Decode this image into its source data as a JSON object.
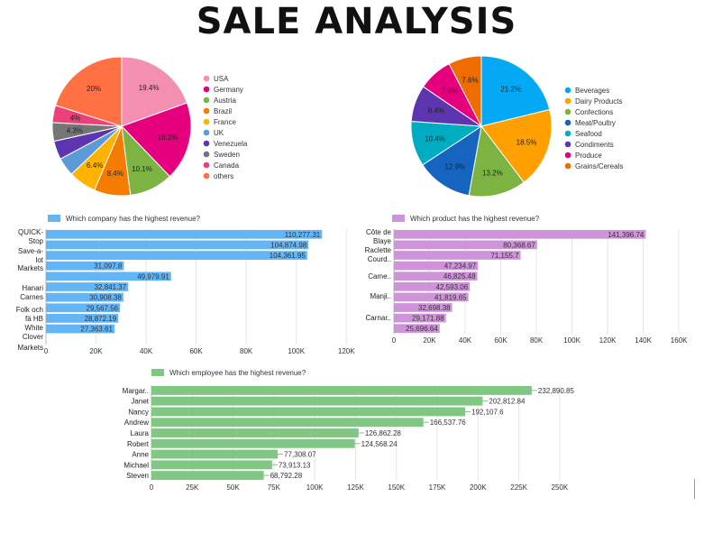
{
  "page": {
    "title": "SALE ANALYSIS"
  },
  "chart_data": [
    {
      "type": "pie",
      "title": "",
      "categories": [
        "USA",
        "Germany",
        "Austria",
        "Brazil",
        "France",
        "UK",
        "Venezuela",
        "Sweden",
        "Canada",
        "others"
      ],
      "values": [
        19.4,
        18.2,
        10.1,
        8.4,
        6.4,
        4.3,
        4.3,
        4.3,
        4,
        20
      ],
      "slice_labels": [
        "19.4%",
        "18.2%",
        "10.1%",
        "8.4%",
        "6.4%",
        "",
        "",
        "4.3%",
        "4%",
        "20%"
      ],
      "colors": [
        "#f48fb1",
        "#e6007e",
        "#7cb342",
        "#f57c00",
        "#ffb300",
        "#5c9bd5",
        "#5e35b1",
        "#757575",
        "#ec407a",
        "#ff7043"
      ],
      "legend_position": "right"
    },
    {
      "type": "pie",
      "title": "",
      "categories": [
        "Beverages",
        "Dairy Products",
        "Confections",
        "Meat/Poultry",
        "Seafood",
        "Condiments",
        "Produce",
        "Grains/Cereals"
      ],
      "values": [
        21.2,
        18.5,
        13.2,
        12.9,
        10.4,
        8.4,
        7.9,
        7.6
      ],
      "slice_labels": [
        "21.2%",
        "18.5%",
        "13.2%",
        "12.9%",
        "10.4%",
        "8.4%",
        "7.9%",
        "7.6%"
      ],
      "colors": [
        "#03a9f4",
        "#ffa000",
        "#7cb342",
        "#1565c0",
        "#00acc1",
        "#5e35b1",
        "#e6007e",
        "#ef6c00"
      ],
      "legend_position": "right"
    },
    {
      "type": "bar",
      "orientation": "horizontal",
      "legend": "Which company has the highest revenue?",
      "color": "#64b5f6",
      "categories": [
        "QUICK-Stop",
        "Save-a-lot Markets",
        "",
        "",
        "",
        "Hanari Carnes",
        "",
        "Folk och fä HB",
        "White Clover Markets",
        "",
        ""
      ],
      "values": [
        110277.31,
        104874.98,
        104361.95,
        31097.8,
        49979.91,
        32841.37,
        30908.38,
        29567.56,
        28872.19,
        27363.61,
        0
      ],
      "value_labels": [
        "110,277.31",
        "104,874.98",
        "104,361.95",
        "31,097.8",
        "49,979.91",
        "32,841.37",
        "30,908.38",
        "29,567.56",
        "28,872.19",
        "27,363.61",
        ""
      ],
      "category_labels": [
        [
          "QUICK-",
          "Stop"
        ],
        [
          "Save-a-",
          "lot"
        ],
        [
          "Markets"
        ],
        [
          "Hanari",
          "Carnes"
        ],
        [
          "Folk och",
          "fä HB"
        ],
        [
          "White",
          "Clover"
        ],
        [
          "Markets"
        ]
      ],
      "xlim": [
        0,
        130000
      ],
      "xticks": [
        "0",
        "20K",
        "40K",
        "60K",
        "80K",
        "100K",
        "120K"
      ],
      "grid": true
    },
    {
      "type": "bar",
      "orientation": "horizontal",
      "legend": "Which product has the highest revenue?",
      "color": "#ce93d8",
      "categories": [
        "Côte de Blaye",
        "",
        "Raclette Courd..",
        "",
        "Came..",
        "",
        "Manji..",
        "",
        "Carnar..",
        ""
      ],
      "values": [
        141396.74,
        80368.67,
        71155.7,
        47234.97,
        46825.48,
        42593.06,
        41819.65,
        32698.38,
        29171.88,
        25696.64
      ],
      "value_labels": [
        "141,396.74",
        "80,368.67",
        "71,155.7",
        "47,234.97",
        "46,825.48",
        "42,593.06",
        "41,819.65",
        "32,698.38",
        "29,171.88",
        "25,696.64"
      ],
      "category_labels": [
        [
          "Côte de",
          "Blaye"
        ],
        [
          "Raclette",
          "Courd.."
        ],
        [
          "Came.."
        ],
        [
          "Manji.."
        ],
        [
          "Carnar.."
        ]
      ],
      "xlim": [
        0,
        165000
      ],
      "xticks": [
        "0",
        "20K",
        "40K",
        "60K",
        "80K",
        "100K",
        "120K",
        "140K",
        "160K"
      ],
      "grid": true
    },
    {
      "type": "bar",
      "orientation": "horizontal",
      "legend": "Which employee has the highest revenue?",
      "color": "#81c784",
      "categories": [
        "Margar..",
        "Janet",
        "Nancy",
        "Andrew",
        "Laura",
        "Robert",
        "Anne",
        "Michael",
        "Steven"
      ],
      "values": [
        232890.85,
        202812.84,
        192107.6,
        166537.76,
        126862.28,
        124568.24,
        77308.07,
        73913.13,
        68792.28
      ],
      "value_labels": [
        "232,890.85",
        "202,812.84",
        "192,107.6",
        "166,537.76",
        "126,862.28",
        "124,568.24",
        "77,308.07",
        "73,913.13",
        "68,792.28"
      ],
      "xlim": [
        0,
        260000
      ],
      "xticks": [
        "0",
        "25K",
        "50K",
        "75K",
        "100K",
        "125K",
        "150K",
        "175K",
        "200K",
        "225K",
        "250K"
      ],
      "grid": true
    }
  ]
}
